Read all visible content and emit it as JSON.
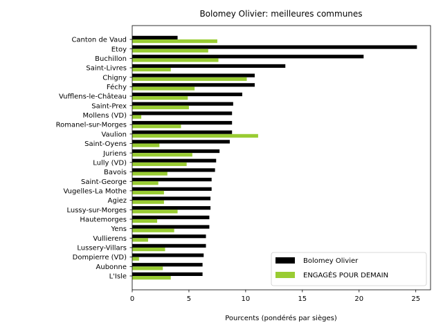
{
  "chart_data": {
    "type": "bar",
    "orientation": "horizontal",
    "title": "Bolomey Olivier: meilleures communes",
    "xlabel": "Pourcents (pondérés par sièges)",
    "ylabel": "",
    "xlim": [
      0,
      26.3
    ],
    "xticks": [
      0,
      5,
      10,
      15,
      20,
      25
    ],
    "grid": false,
    "legend_position": "lower-right",
    "categories": [
      "Canton de Vaud",
      "Etoy",
      "Buchillon",
      "Saint-Livres",
      "Chigny",
      "Féchy",
      "Vufflens-le-Château",
      "Saint-Prex",
      "Mollens (VD)",
      "Romanel-sur-Morges",
      "Vaulion",
      "Saint-Oyens",
      "Juriens",
      "Lully (VD)",
      "Bavois",
      "Saint-George",
      "Vugelles-La Mothe",
      "Agiez",
      "Lussy-sur-Morges",
      "Hautemorges",
      "Yens",
      "Vullierens",
      "Lussery-Villars",
      "Dompierre (VD)",
      "Aubonne",
      "L'Isle"
    ],
    "series": [
      {
        "name": "Bolomey Olivier",
        "color": "#000000",
        "values": [
          4.0,
          25.1,
          20.4,
          13.5,
          10.8,
          10.8,
          9.7,
          8.9,
          8.8,
          8.8,
          8.8,
          8.6,
          7.7,
          7.4,
          7.3,
          7.0,
          7.0,
          6.9,
          6.9,
          6.8,
          6.8,
          6.5,
          6.5,
          6.3,
          6.2,
          6.2
        ]
      },
      {
        "name": "ENGAGÉS POUR DEMAIN",
        "color": "#99cc33",
        "values": [
          7.5,
          6.7,
          7.6,
          3.4,
          10.1,
          5.5,
          4.9,
          5.0,
          0.8,
          4.3,
          11.1,
          2.4,
          5.3,
          4.8,
          3.1,
          2.3,
          2.8,
          2.8,
          4.0,
          2.2,
          3.7,
          1.4,
          2.9,
          0.6,
          2.7,
          3.4
        ]
      }
    ]
  }
}
